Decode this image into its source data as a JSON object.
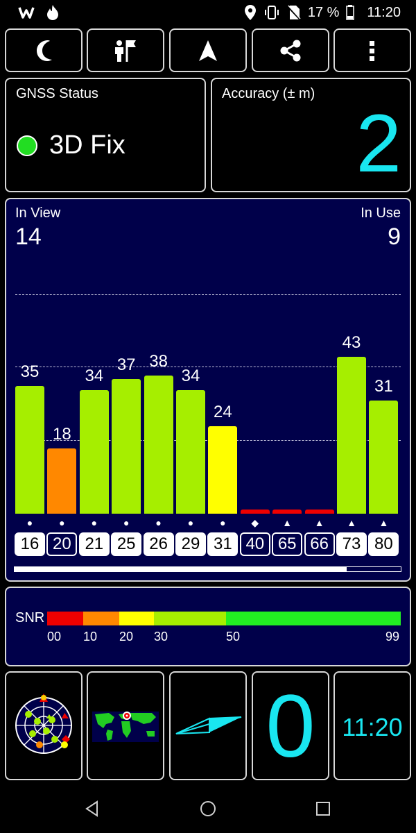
{
  "status_bar": {
    "left_icons": [
      "w-app-icon",
      "fire-icon"
    ],
    "battery_text": "17 %",
    "time": "11:20"
  },
  "toolbar": {
    "buttons": [
      "night-mode-icon",
      "person-flag-icon",
      "navigation-arrow-icon",
      "share-icon",
      "more-vert-icon"
    ]
  },
  "gnss_status": {
    "label": "GNSS Status",
    "value": "3D Fix",
    "indicator_color": "#22dd22"
  },
  "accuracy": {
    "label": "Accuracy (± m)",
    "value": "2",
    "value_color": "#19e6f0"
  },
  "satellites": {
    "in_view_label": "In View",
    "in_view": "14",
    "in_use_label": "In Use",
    "in_use": "9",
    "progress": 0.86,
    "bars": [
      {
        "prn": "16",
        "snr": "35",
        "snr_value": 35,
        "symbol": "●",
        "used": true,
        "color": "#a6ee00"
      },
      {
        "prn": "20",
        "snr": "18",
        "snr_value": 18,
        "symbol": "●",
        "used": false,
        "color": "#ff8800"
      },
      {
        "prn": "21",
        "snr": "34",
        "snr_value": 34,
        "symbol": "●",
        "used": true,
        "color": "#a6ee00"
      },
      {
        "prn": "25",
        "snr": "37",
        "snr_value": 37,
        "symbol": "●",
        "used": true,
        "color": "#a6ee00"
      },
      {
        "prn": "26",
        "snr": "38",
        "snr_value": 38,
        "symbol": "●",
        "used": true,
        "color": "#a6ee00"
      },
      {
        "prn": "29",
        "snr": "34",
        "snr_value": 34,
        "symbol": "●",
        "used": true,
        "color": "#a6ee00"
      },
      {
        "prn": "31",
        "snr": "24",
        "snr_value": 24,
        "symbol": "●",
        "used": true,
        "color": "#ffff00"
      },
      {
        "prn": "40",
        "snr": "",
        "snr_value": 0,
        "symbol": "◆",
        "used": false,
        "color": "#ee0000"
      },
      {
        "prn": "65",
        "snr": "",
        "snr_value": 0,
        "symbol": "▲",
        "used": false,
        "color": "#ee0000"
      },
      {
        "prn": "66",
        "snr": "",
        "snr_value": 0,
        "symbol": "▲",
        "used": false,
        "color": "#ee0000"
      },
      {
        "prn": "73",
        "snr": "43",
        "snr_value": 43,
        "symbol": "▲",
        "used": true,
        "color": "#a6ee00"
      },
      {
        "prn": "80",
        "snr": "31",
        "snr_value": 31,
        "symbol": "▲",
        "used": true,
        "color": "#a6ee00"
      }
    ]
  },
  "snr_legend": {
    "label": "SNR",
    "ticks": [
      "00",
      "10",
      "20",
      "30",
      "50",
      "99"
    ],
    "segments": [
      {
        "color": "#ee0000"
      },
      {
        "color": "#ff8800"
      },
      {
        "color": "#ffff00"
      },
      {
        "color": "#a6ee00"
      },
      {
        "color": "#22ee22"
      }
    ]
  },
  "bottom": {
    "widgets": [
      "sky-plot-icon",
      "world-map-icon",
      "compass-needle-icon",
      "speed-display",
      "clock-display"
    ],
    "speed_value": "0",
    "clock_value": "11:20",
    "accent_color": "#19e6f0"
  },
  "navbar": {
    "buttons": [
      "back-icon",
      "home-icon",
      "recents-icon"
    ]
  }
}
